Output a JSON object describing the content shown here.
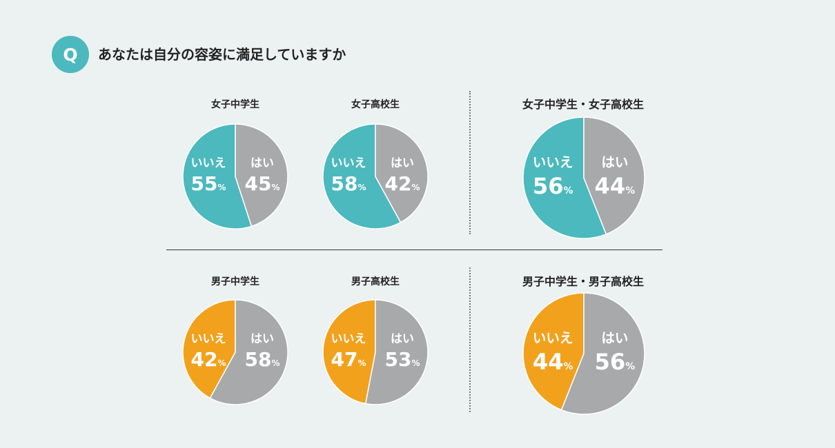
{
  "header": {
    "q_label": "Q",
    "question": "あなたは自分の容姿に満足していますか"
  },
  "colors": {
    "teal": "#4bb9be",
    "orange": "#f2a11d",
    "gray": "#a8a9ab",
    "background": "#ebf2f1"
  },
  "chart_data": [
    {
      "type": "pie",
      "title": "女子中学生",
      "slices": [
        {
          "label": "はい",
          "value": 45,
          "color": "#a8a9ab"
        },
        {
          "label": "いいえ",
          "value": 55,
          "color": "#4bb9be"
        }
      ]
    },
    {
      "type": "pie",
      "title": "女子高校生",
      "slices": [
        {
          "label": "はい",
          "value": 42,
          "color": "#a8a9ab"
        },
        {
          "label": "いいえ",
          "value": 58,
          "color": "#4bb9be"
        }
      ]
    },
    {
      "type": "pie",
      "title": "女子中学生・女子高校生",
      "slices": [
        {
          "label": "はい",
          "value": 44,
          "color": "#a8a9ab"
        },
        {
          "label": "いいえ",
          "value": 56,
          "color": "#4bb9be"
        }
      ]
    },
    {
      "type": "pie",
      "title": "男子中学生",
      "slices": [
        {
          "label": "はい",
          "value": 58,
          "color": "#a8a9ab"
        },
        {
          "label": "いいえ",
          "value": 42,
          "color": "#f2a11d"
        }
      ]
    },
    {
      "type": "pie",
      "title": "男子高校生",
      "slices": [
        {
          "label": "はい",
          "value": 53,
          "color": "#a8a9ab"
        },
        {
          "label": "いいえ",
          "value": 47,
          "color": "#f2a11d"
        }
      ]
    },
    {
      "type": "pie",
      "title": "男子中学生・男子高校生",
      "slices": [
        {
          "label": "はい",
          "value": 56,
          "color": "#a8a9ab"
        },
        {
          "label": "いいえ",
          "value": 44,
          "color": "#f2a11d"
        }
      ]
    }
  ]
}
